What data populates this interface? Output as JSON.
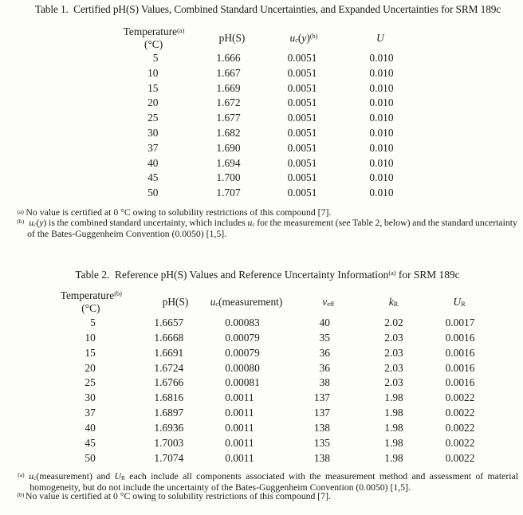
{
  "table1": {
    "title": "Table 1.  Certified pH(S) Values, Combined Standard Uncertainties, and Expanded Uncertainties for SRM 189c",
    "header": {
      "temperature": "Temperature^(a)^",
      "temperature_unit": "(°C)",
      "ph": "pH(S)",
      "uc": "*u*_c_(*y*)^(b)^",
      "u": "*U*"
    },
    "rows": [
      [
        "5",
        "1.666",
        "0.0051",
        "0.010"
      ],
      [
        "10",
        "1.667",
        "0.0051",
        "0.010"
      ],
      [
        "15",
        "1.669",
        "0.0051",
        "0.010"
      ],
      [
        "20",
        "1.672",
        "0.0051",
        "0.010"
      ],
      [
        "25",
        "1.677",
        "0.0051",
        "0.010"
      ],
      [
        "30",
        "1.682",
        "0.0051",
        "0.010"
      ],
      [
        "37",
        "1.690",
        "0.0051",
        "0.010"
      ],
      [
        "40",
        "1.694",
        "0.0051",
        "0.010"
      ],
      [
        "45",
        "1.700",
        "0.0051",
        "0.010"
      ],
      [
        "50",
        "1.707",
        "0.0051",
        "0.010"
      ]
    ],
    "footnotes": {
      "a_marker": "(a)",
      "a_text": "No value is certified at 0 °C owing to solubility restrictions of this compound [7].",
      "b_marker": "(b)",
      "b_line1": "*u*_c_(*y*) is the combined standard uncertainty, which includes *u*_c_ for the measurement (see Table 2, below) and the standard uncertainty",
      "b_line2": "of the Bates-Guggenheim Convention (0.0050) [1,5]."
    }
  },
  "table2": {
    "title": "Table 2.  Reference pH(S) Values and Reference Uncertainty Information^(a)^ for SRM 189c",
    "header": {
      "temperature": "Temperature^(b)^",
      "temperature_unit": "(°C)",
      "ph": "pH(S)",
      "uc": "*u*_c_(measurement)",
      "veff": "*v*_eff_",
      "kr": "*k*_R_",
      "ur": "*U*_R_"
    },
    "rows": [
      [
        "5",
        "1.6657",
        "0.00083",
        "40",
        "2.02",
        "0.0017"
      ],
      [
        "10",
        "1.6668",
        "0.00079",
        "35",
        "2.03",
        "0.0016"
      ],
      [
        "15",
        "1.6691",
        "0.00079",
        "36",
        "2.03",
        "0.0016"
      ],
      [
        "20",
        "1.6724",
        "0.00080",
        "36",
        "2.03",
        "0.0016"
      ],
      [
        "25",
        "1.6766",
        "0.00081",
        "38",
        "2.03",
        "0.0016"
      ],
      [
        "30",
        "1.6816",
        "0.0011",
        "137",
        "1.98",
        "0.0022"
      ],
      [
        "37",
        "1.6897",
        "0.0011",
        "137",
        "1.98",
        "0.0022"
      ],
      [
        "40",
        "1.6936",
        "0.0011",
        "138",
        "1.98",
        "0.0022"
      ],
      [
        "45",
        "1.7003",
        "0.0011",
        "135",
        "1.98",
        "0.0022"
      ],
      [
        "50",
        "1.7074",
        "0.0011",
        "138",
        "1.98",
        "0.0022"
      ]
    ],
    "footnotes": {
      "a_marker": "(a)",
      "a_line1": "*u*_c_(measurement) and *U*_R_ each include all components associated with the measurement method and assessment of material",
      "a_line2": "homogeneity, but do not include the uncertainty of the Bates-Guggenheim Convention (0.0050) [1,5].",
      "b_marker": "(b)",
      "b_text": "No value is certified at 0 °C owing to solubility restrictions of this compound [7]."
    }
  }
}
